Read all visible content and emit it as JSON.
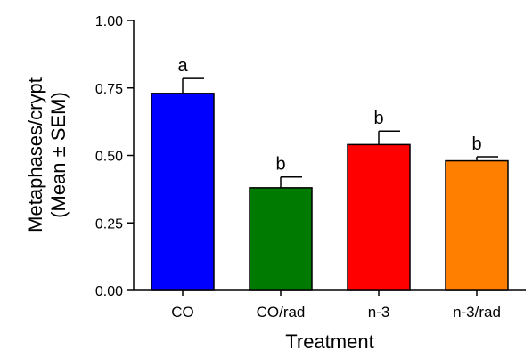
{
  "chart_data": {
    "type": "bar",
    "title": "",
    "xlabel": "Treatment",
    "ylabel": [
      "Metaphases/crypt",
      "(Mean ± SEM)"
    ],
    "ylim": [
      0,
      1.0
    ],
    "yticks": [
      "0.00",
      "0.25",
      "0.50",
      "0.75",
      "1.00"
    ],
    "categories": [
      "CO",
      "CO/rad",
      "n-3",
      "n-3/rad"
    ],
    "values": [
      0.73,
      0.38,
      0.54,
      0.48
    ],
    "errors": [
      0.055,
      0.04,
      0.05,
      0.015
    ],
    "significance": [
      "a",
      "b",
      "b",
      "b"
    ],
    "colors": [
      "#0000ff",
      "#007a00",
      "#ff0000",
      "#ff8000"
    ],
    "grid": false,
    "legend": "none"
  }
}
